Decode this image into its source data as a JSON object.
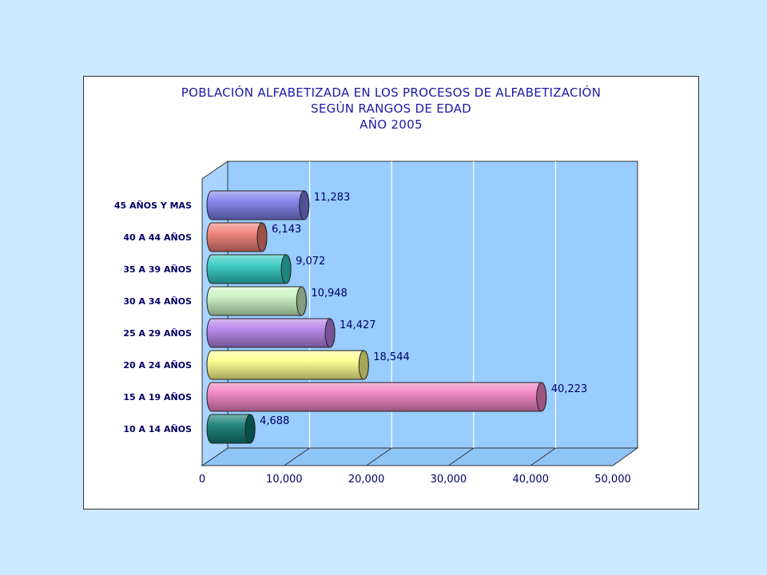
{
  "chart_data": {
    "type": "bar",
    "orientation": "horizontal",
    "title_lines": [
      "POBLACIÓN ALFABETIZADA EN LOS PROCESOS DE ALFABETIZACIÓN",
      "SEGÚN RANGOS DE EDAD",
      "AÑO 2005"
    ],
    "categories": [
      "45 AÑOS Y MAS",
      "40 A 44 AÑOS",
      "35 A 39 AÑOS",
      "30 A 34 AÑOS",
      "25 A 29 AÑOS",
      "20 A 24 AÑOS",
      "15 A 19 AÑOS",
      "10 A 14 AÑOS"
    ],
    "values": [
      11283,
      6143,
      9072,
      10948,
      14427,
      18544,
      40223,
      4688
    ],
    "value_labels": [
      "11,283",
      "6,143",
      "9,072",
      "10,948",
      "14,427",
      "18,544",
      "40,223",
      "4,688"
    ],
    "bar_colors": [
      "#7b7bea",
      "#ef7b73",
      "#2ec8c0",
      "#c8f0c0",
      "#b27fe8",
      "#ffff8a",
      "#f07fc0",
      "#0e7a70"
    ],
    "xlim": [
      0,
      50000
    ],
    "xticks": [
      0,
      10000,
      20000,
      30000,
      40000,
      50000
    ],
    "xtick_labels": [
      "0",
      "10,000",
      "20,000",
      "30,000",
      "40,000",
      "50,000"
    ],
    "grid": true,
    "legend": "none",
    "style": "3d-cylinder"
  }
}
